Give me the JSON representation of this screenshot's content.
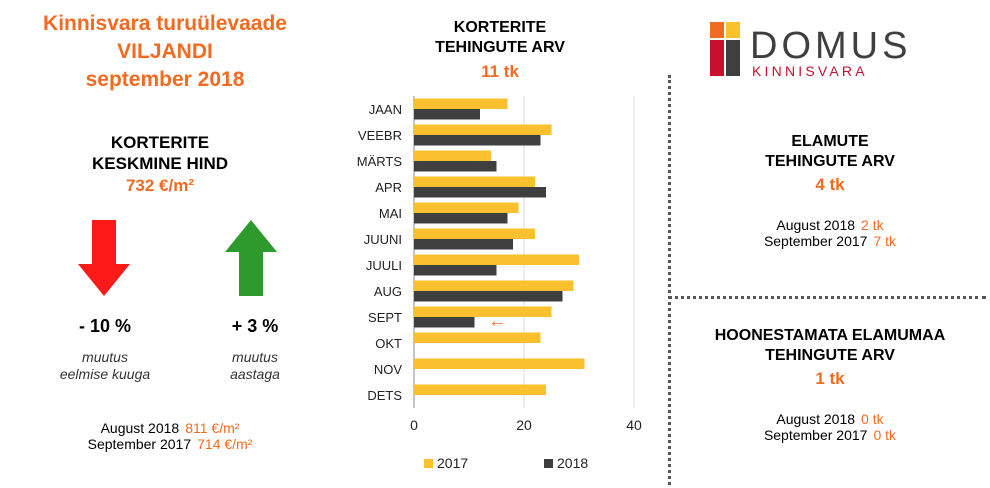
{
  "left": {
    "title_line1": "Kinnisvara turuülevaade",
    "title_line2": "VILJANDI",
    "title_line3": "september 2018",
    "price_heading_line1": "KORTERITE",
    "price_heading_line2": "KESKMINE HIND",
    "price_value": "732 €/m²",
    "change_month": {
      "value": "- 10 %",
      "label_line1": "muutus",
      "label_line2": "eelmise kuuga"
    },
    "change_year": {
      "value": "+ 3 %",
      "label_line1": "muutus",
      "label_line2": "aastaga"
    },
    "comparison": [
      {
        "label": "August 2018",
        "value": "811 €/m²"
      },
      {
        "label": "September 2017",
        "value": "714 €/m²"
      }
    ]
  },
  "center": {
    "heading_line1": "KORTERITE",
    "heading_line2": "TEHINGUTE ARV",
    "total": "11 tk"
  },
  "right": {
    "logo": {
      "word": "DOMUS",
      "sub": "KINNISVARA"
    },
    "houses": {
      "heading_line1": "ELAMUTE",
      "heading_line2": "TEHINGUTE ARV",
      "value": "4 tk",
      "comparison": [
        {
          "label": "August 2018",
          "value": "2 tk"
        },
        {
          "label": "September 2017",
          "value": "7 tk"
        }
      ]
    },
    "land": {
      "heading_line1": "HOONESTAMATA ELAMUMAA",
      "heading_line2": "TEHINGUTE ARV",
      "value": "1 tk",
      "comparison": [
        {
          "label": "August 2018",
          "value": "0 tk"
        },
        {
          "label": "September 2017",
          "value": "0 tk"
        }
      ]
    }
  },
  "colors": {
    "accent": "#f26b21",
    "series_2017": "#fbc02d",
    "series_2018": "#3f3f3f",
    "arrow_down": "#ff1a1a",
    "arrow_up": "#2e9a2e"
  },
  "chart_data": {
    "type": "bar",
    "orientation": "horizontal",
    "categories": [
      "JAAN",
      "VEEBR",
      "MÄRTS",
      "APR",
      "MAI",
      "JUUNI",
      "JUULI",
      "AUG",
      "SEPT",
      "OKT",
      "NOV",
      "DETS"
    ],
    "series": [
      {
        "name": "2017",
        "values": [
          17,
          25,
          14,
          22,
          19,
          22,
          30,
          29,
          25,
          23,
          31,
          24
        ]
      },
      {
        "name": "2018",
        "values": [
          12,
          23,
          15,
          24,
          17,
          18,
          15,
          27,
          11,
          null,
          null,
          null
        ]
      }
    ],
    "xticks": [
      "0",
      "20",
      "40"
    ],
    "xlim": [
      0,
      40
    ],
    "grid": true,
    "legend": "bottom",
    "highlight_arrow": "←",
    "highlight_category": "SEPT"
  }
}
